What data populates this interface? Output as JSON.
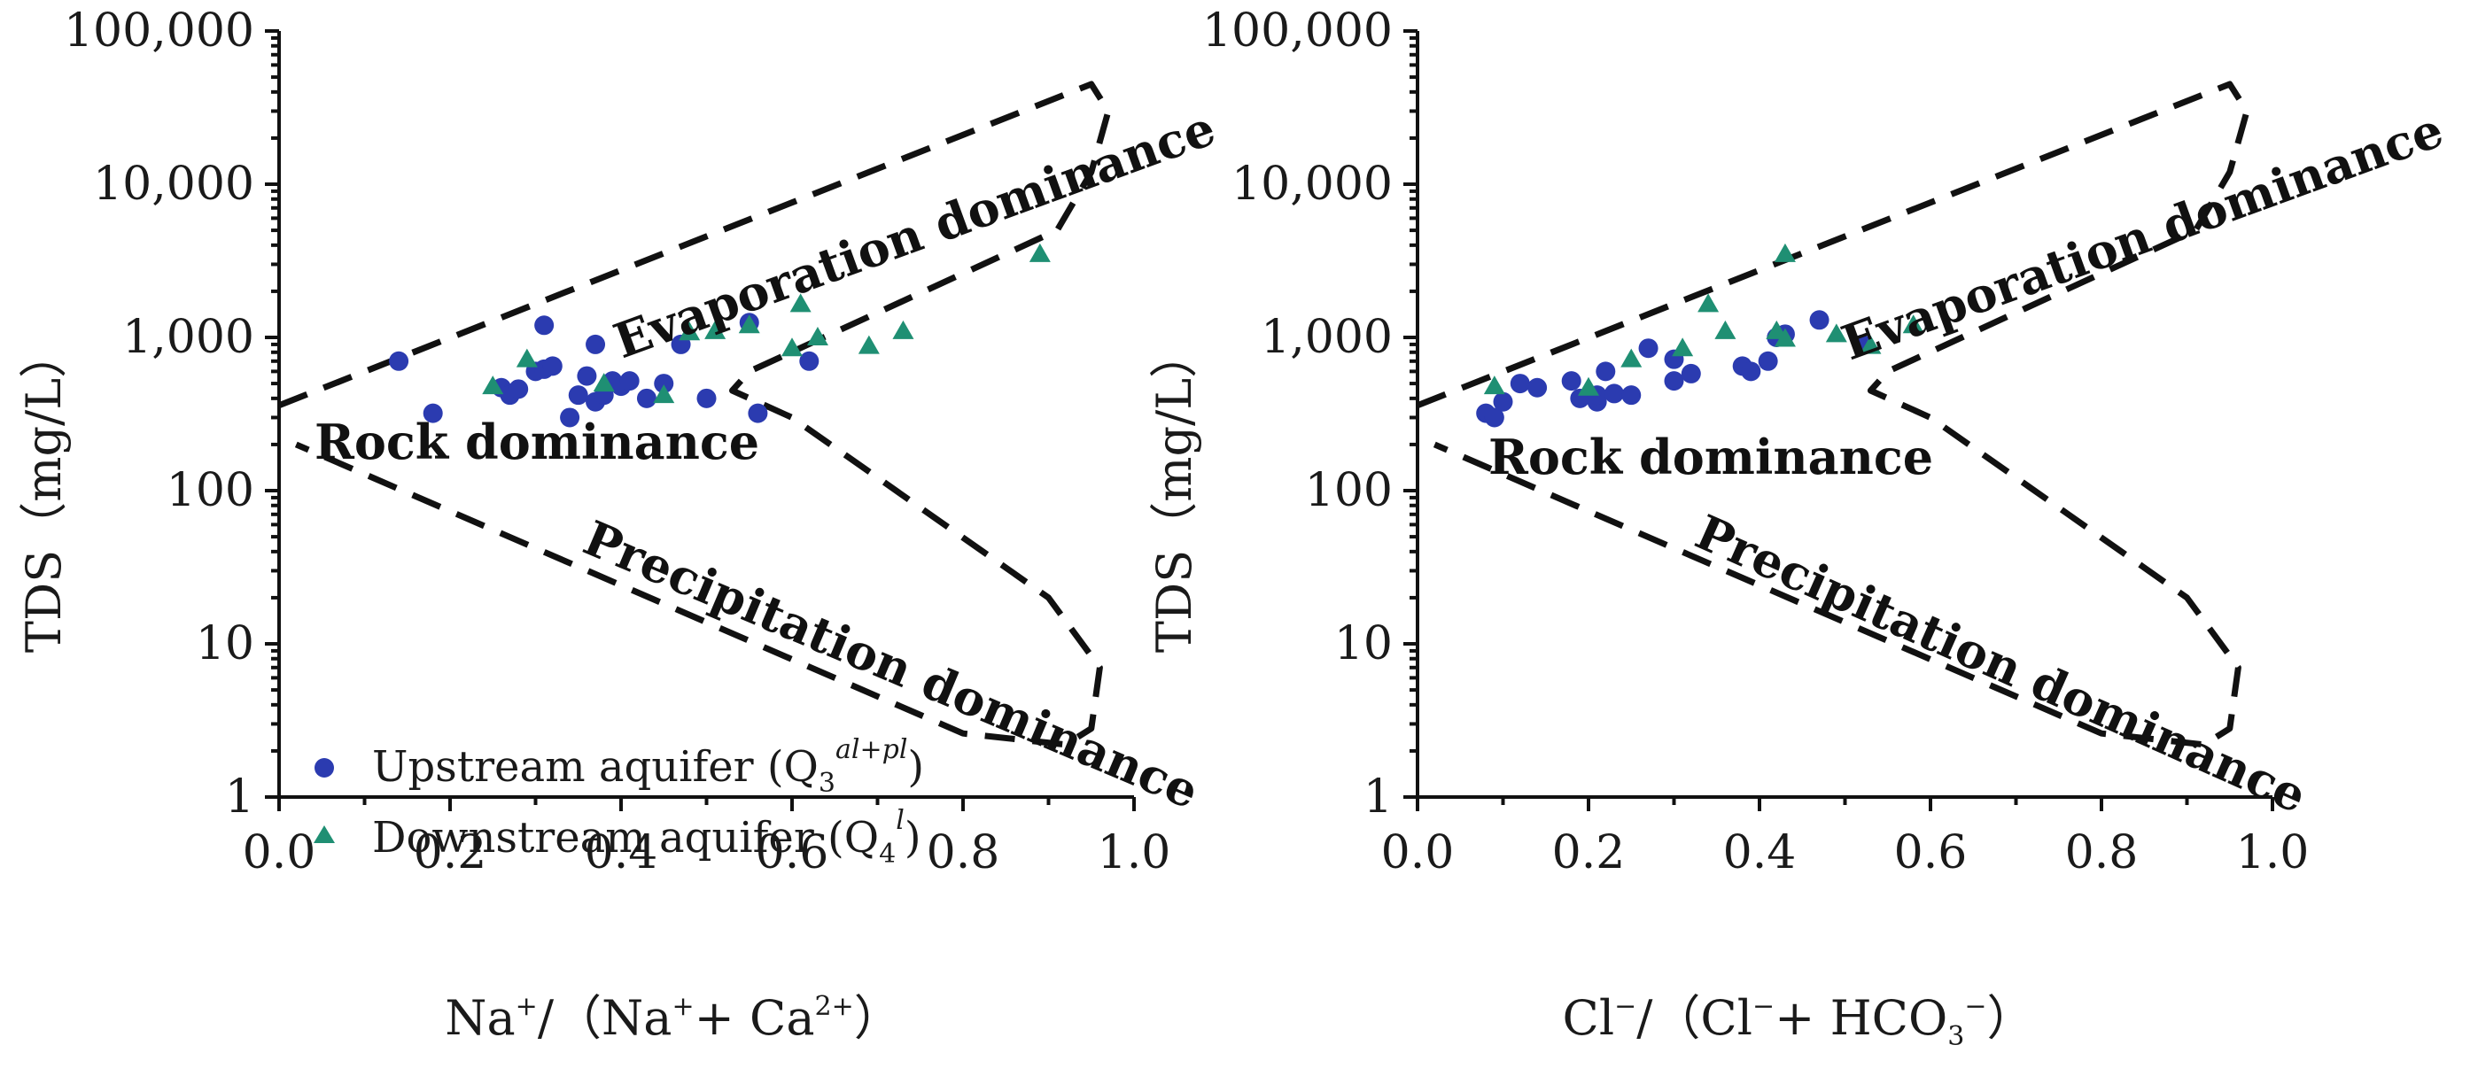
{
  "legend": {
    "upstream": {
      "text": "Upstream aquifer (Q",
      "sub": "3",
      "sup": "al+pl",
      "close": ")"
    },
    "downstream": {
      "text": "Downstream aquifer (Q",
      "sub": "4",
      "sup": "l",
      "close": ")"
    }
  },
  "colors": {
    "upstream": "#2b3bb0",
    "downstream": "#1f8f73",
    "axis": "#111111"
  },
  "chart_data": [
    {
      "type": "scatter",
      "panel": "left",
      "xlabel": {
        "base": "Na",
        "sup1": "+",
        "mid": "/（Na",
        "sup2": "+",
        "mid2": "+ Ca",
        "sup3": "2+",
        "end": "）"
      },
      "ylabel": "TDS（mg/L）",
      "y_scale": "log",
      "xlim": [
        0.0,
        1.0
      ],
      "ylim": [
        1,
        100000
      ],
      "x_ticks": [
        "0.0",
        "0.2",
        "0.4",
        "0.6",
        "0.8",
        "1.0"
      ],
      "y_ticks": [
        "1",
        "10",
        "100",
        "1,000",
        "10,000",
        "100,000"
      ],
      "regions": [
        "Evaporation dominance",
        "Rock dominance",
        "Precipitation dominance"
      ],
      "series": [
        {
          "name": "Upstream aquifer (Q3al+pl)",
          "marker": "circle",
          "points": [
            [
              0.14,
              700
            ],
            [
              0.18,
              320
            ],
            [
              0.26,
              470
            ],
            [
              0.27,
              430
            ],
            [
              0.27,
              420
            ],
            [
              0.28,
              460
            ],
            [
              0.3,
              600
            ],
            [
              0.31,
              1200
            ],
            [
              0.31,
              620
            ],
            [
              0.32,
              650
            ],
            [
              0.34,
              300
            ],
            [
              0.35,
              420
            ],
            [
              0.36,
              560
            ],
            [
              0.37,
              380
            ],
            [
              0.38,
              420
            ],
            [
              0.39,
              520
            ],
            [
              0.4,
              480
            ],
            [
              0.41,
              520
            ],
            [
              0.43,
              400
            ],
            [
              0.45,
              500
            ],
            [
              0.47,
              900
            ],
            [
              0.5,
              400
            ],
            [
              0.55,
              1250
            ],
            [
              0.56,
              320
            ],
            [
              0.62,
              700
            ],
            [
              0.37,
              900
            ]
          ]
        },
        {
          "name": "Downstream aquifer (Q4l)",
          "marker": "triangle",
          "points": [
            [
              0.25,
              480
            ],
            [
              0.29,
              720
            ],
            [
              0.38,
              500
            ],
            [
              0.45,
              420
            ],
            [
              0.48,
              1080
            ],
            [
              0.51,
              1100
            ],
            [
              0.55,
              1200
            ],
            [
              0.6,
              850
            ],
            [
              0.61,
              1650
            ],
            [
              0.63,
              1000
            ],
            [
              0.69,
              880
            ],
            [
              0.73,
              1100
            ],
            [
              0.89,
              3500
            ]
          ]
        }
      ]
    },
    {
      "type": "scatter",
      "panel": "right",
      "xlabel": {
        "base": "Cl",
        "sup1": "−",
        "mid": "/（Cl",
        "sup2": "−",
        "mid2": "+ HCO",
        "sub": "3",
        "sup3": "−",
        "end": "）"
      },
      "ylabel": "TDS（mg/L）",
      "y_scale": "log",
      "xlim": [
        0.0,
        1.0
      ],
      "ylim": [
        1,
        100000
      ],
      "x_ticks": [
        "0.0",
        "0.2",
        "0.4",
        "0.6",
        "0.8",
        "1.0"
      ],
      "y_ticks": [
        "1",
        "10",
        "100",
        "1,000",
        "10,000",
        "100,000"
      ],
      "regions": [
        "Evaporation dominance",
        "Rock dominance",
        "Precipitation dominance"
      ],
      "series": [
        {
          "name": "Upstream aquifer (Q3al+pl)",
          "marker": "circle",
          "points": [
            [
              0.08,
              320
            ],
            [
              0.09,
              300
            ],
            [
              0.1,
              380
            ],
            [
              0.12,
              500
            ],
            [
              0.14,
              470
            ],
            [
              0.18,
              520
            ],
            [
              0.19,
              400
            ],
            [
              0.21,
              380
            ],
            [
              0.21,
              420
            ],
            [
              0.22,
              600
            ],
            [
              0.23,
              430
            ],
            [
              0.25,
              420
            ],
            [
              0.27,
              850
            ],
            [
              0.3,
              520
            ],
            [
              0.3,
              720
            ],
            [
              0.32,
              580
            ],
            [
              0.38,
              650
            ],
            [
              0.39,
              600
            ],
            [
              0.41,
              700
            ],
            [
              0.42,
              1000
            ],
            [
              0.47,
              1300
            ],
            [
              0.52,
              900
            ],
            [
              0.43,
              1050
            ]
          ]
        },
        {
          "name": "Downstream aquifer (Q4l)",
          "marker": "triangle",
          "points": [
            [
              0.09,
              480
            ],
            [
              0.2,
              470
            ],
            [
              0.25,
              720
            ],
            [
              0.31,
              850
            ],
            [
              0.34,
              1650
            ],
            [
              0.36,
              1100
            ],
            [
              0.42,
              1100
            ],
            [
              0.43,
              980
            ],
            [
              0.43,
              3500
            ],
            [
              0.49,
              1050
            ],
            [
              0.53,
              880
            ],
            [
              0.58,
              1200
            ]
          ]
        }
      ]
    }
  ]
}
